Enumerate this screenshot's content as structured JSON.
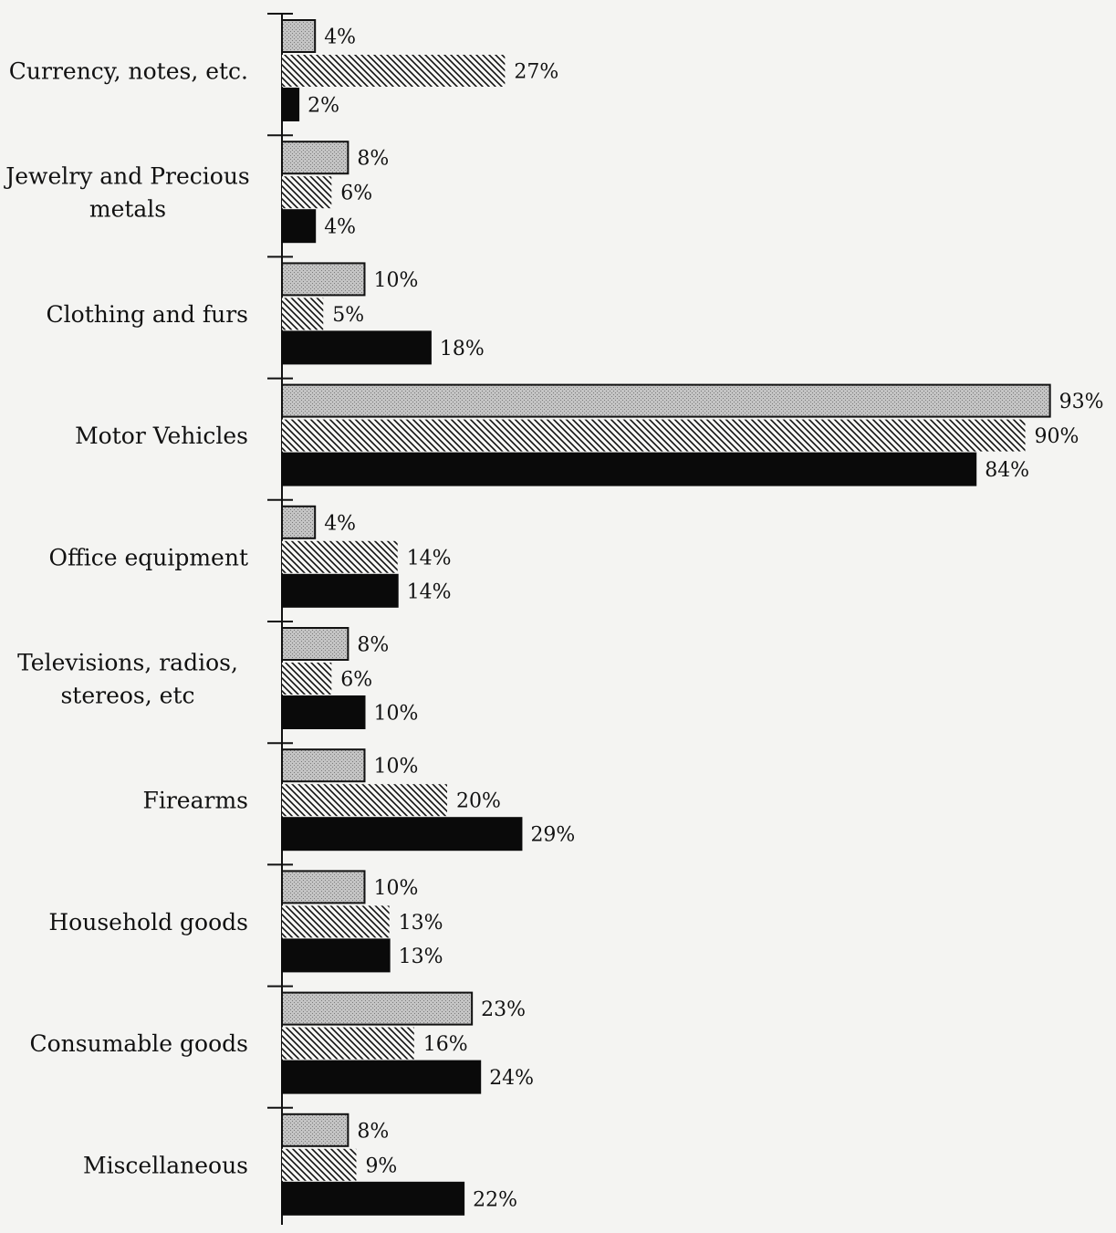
{
  "chart_data": {
    "type": "bar",
    "orientation": "horizontal",
    "title": "",
    "xlabel": "",
    "ylabel": "",
    "xlim": [
      0,
      100
    ],
    "grid": false,
    "legend": "none",
    "categories": [
      [
        "Currency, notes, etc."
      ],
      [
        "Jewelry and Precious",
        "metals"
      ],
      [
        "Clothing and furs"
      ],
      [
        "Motor  Vehicles"
      ],
      [
        "Office equipment"
      ],
      [
        "Televisions, radios,",
        "stereos, etc"
      ],
      [
        "Firearms"
      ],
      [
        "Household goods"
      ],
      [
        "Consumable goods"
      ],
      [
        "Miscellaneous"
      ]
    ],
    "series": [
      {
        "pattern": "stippled",
        "fill": "#bcbcbc",
        "values": [
          4,
          8,
          10,
          93,
          4,
          8,
          10,
          10,
          23,
          8
        ]
      },
      {
        "pattern": "hatched",
        "fill": "#ffffff",
        "stroke": "#111111",
        "values": [
          27,
          6,
          5,
          90,
          14,
          6,
          20,
          13,
          16,
          9
        ]
      },
      {
        "pattern": "solid",
        "fill": "#0a0a0a",
        "values": [
          2,
          4,
          18,
          84,
          14,
          10,
          29,
          13,
          24,
          22
        ]
      }
    ],
    "value_suffix": "%"
  }
}
